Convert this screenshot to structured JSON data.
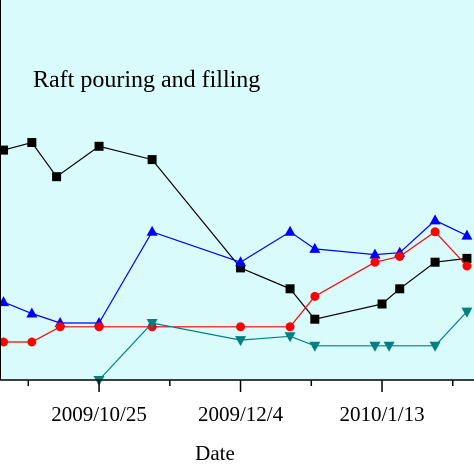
{
  "colors": {
    "plot_background": "#d9fbfb",
    "axis": "#000000"
  },
  "chart_data": {
    "type": "line",
    "title": "",
    "annotation": "Raft pouring and filling",
    "xlabel": "Date",
    "ylabel": "",
    "x_tick_labels": [
      "2009/10/25",
      "2009/12/4",
      "2010/1/13"
    ],
    "x_ticks": [
      "2009-10-25",
      "2009-12-04",
      "2010-01-13"
    ],
    "x_minor_ticks": [
      "2009-10-05",
      "2009-11-14",
      "2009-12-24",
      "2010-02-02"
    ],
    "xlim": [
      "2009-09-27",
      "2010-02-08"
    ],
    "ylim": [
      0,
      100
    ],
    "grid": false,
    "legend": "none",
    "series": [
      {
        "color": "#000000",
        "marker": "square",
        "x": [
          "2009-09-28",
          "2009-10-06",
          "2009-10-13",
          "2009-10-25",
          "2009-11-09",
          "2009-12-04",
          "2009-12-18",
          "2009-12-25",
          "2010-01-13",
          "2010-01-18",
          "2010-01-28",
          "2010-02-06"
        ],
        "y": [
          60.5,
          62.5,
          53.5,
          61.5,
          58,
          29.5,
          24,
          16,
          20,
          24,
          31,
          32
        ]
      },
      {
        "color": "#0000ff",
        "marker": "triangle-up",
        "x": [
          "2009-09-28",
          "2009-10-06",
          "2009-10-14",
          "2009-10-25",
          "2009-11-09",
          "2009-12-04",
          "2009-12-18",
          "2009-12-25",
          "2010-01-11",
          "2010-01-18",
          "2010-01-28",
          "2010-02-06"
        ],
        "y": [
          20.5,
          17.5,
          15,
          15,
          39,
          31,
          39,
          34.5,
          33,
          33.5,
          42,
          38
        ]
      },
      {
        "color": "#ff0000",
        "marker": "circle",
        "x": [
          "2009-09-28",
          "2009-10-06",
          "2009-10-14",
          "2009-10-25",
          "2009-11-09",
          "2009-12-04",
          "2009-12-18",
          "2009-12-25",
          "2010-01-11",
          "2010-01-18",
          "2010-01-28",
          "2010-02-06"
        ],
        "y": [
          10,
          10,
          14,
          14,
          14,
          14,
          14,
          22,
          31,
          32.5,
          39,
          30
        ]
      },
      {
        "color": "#008080",
        "marker": "triangle-down",
        "x": [
          "2009-10-25",
          "2009-11-09",
          "2009-12-04",
          "2009-12-18",
          "2009-12-25",
          "2010-01-11",
          "2010-01-15",
          "2010-01-28",
          "2010-02-06"
        ],
        "y": [
          0,
          15,
          10.5,
          11.5,
          9,
          9,
          9,
          9,
          18
        ]
      }
    ]
  }
}
